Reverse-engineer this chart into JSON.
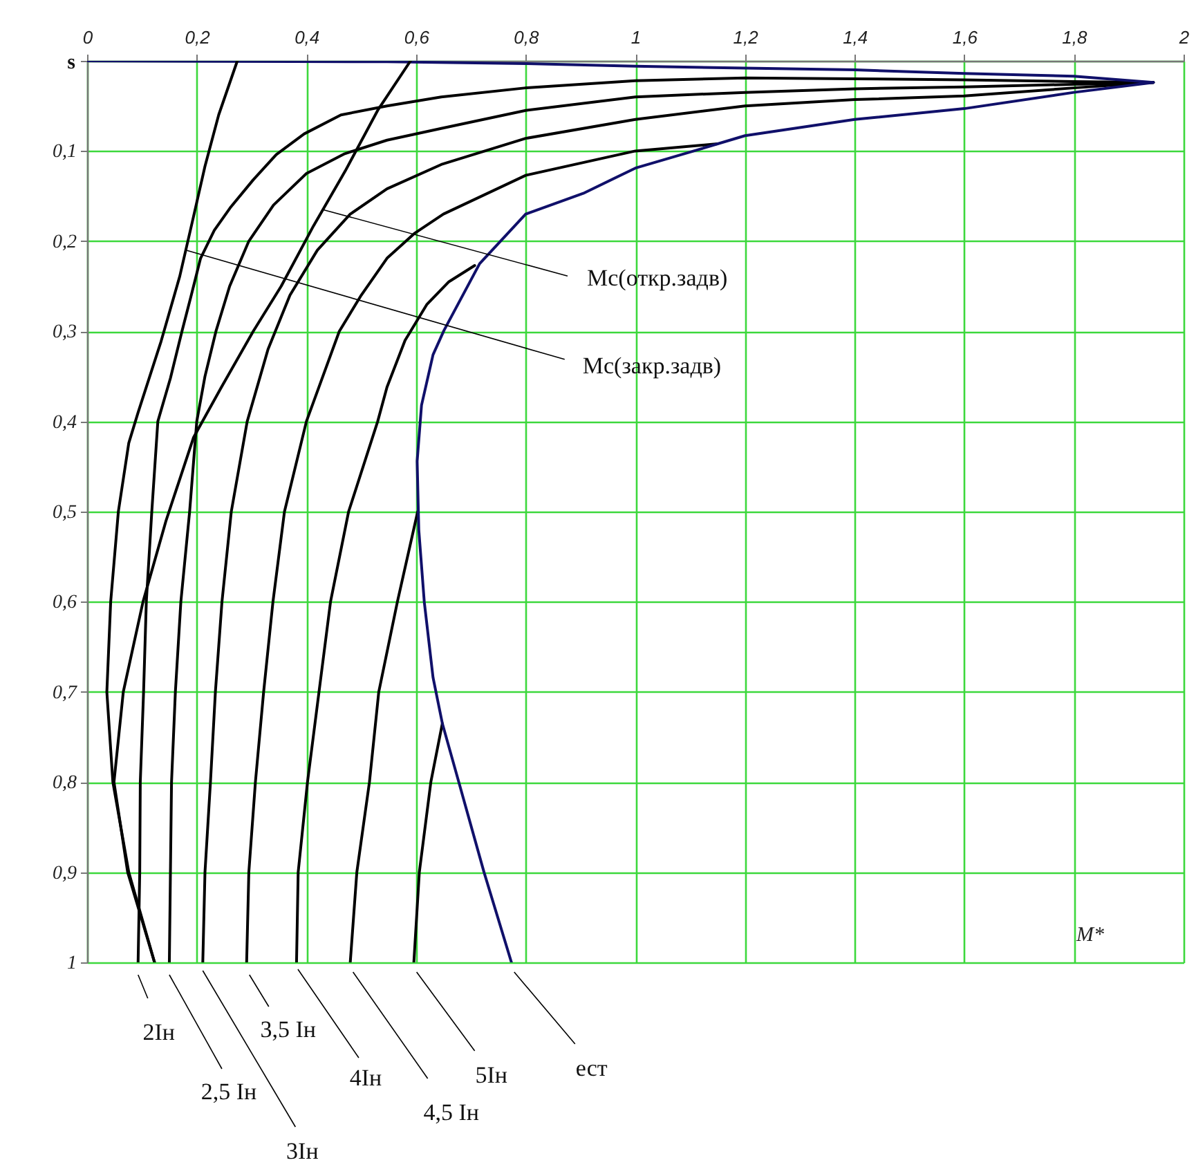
{
  "chart_data": {
    "type": "line",
    "xlabel": "M*",
    "ylabel": "s",
    "xlim": [
      0,
      2
    ],
    "ylim": [
      1,
      0
    ],
    "xticks": [
      0,
      {
        "value": 0.2,
        "label": "0,2"
      },
      {
        "value": 0.4,
        "label": "0,4"
      },
      {
        "value": 0.6,
        "label": "0,6"
      },
      {
        "value": 0.8,
        "label": "0,8"
      },
      1,
      {
        "value": 1.2,
        "label": "1,2"
      },
      {
        "value": 1.4,
        "label": "1,4"
      },
      {
        "value": 1.6,
        "label": "1,6"
      },
      {
        "value": 1.8,
        "label": "1,8"
      },
      2
    ],
    "yticks": [
      {
        "value": 0,
        "label": null
      },
      {
        "value": 0.1,
        "label": "0,1"
      },
      {
        "value": 0.2,
        "label": "0,2"
      },
      {
        "value": 0.3,
        "label": "0,3"
      },
      {
        "value": 0.4,
        "label": "0,4"
      },
      {
        "value": 0.5,
        "label": "0,5"
      },
      {
        "value": 0.6,
        "label": "0,6"
      },
      {
        "value": 0.7,
        "label": "0,7"
      },
      {
        "value": 0.8,
        "label": "0,8"
      },
      {
        "value": 0.9,
        "label": "0,9"
      },
      1
    ],
    "grid": true,
    "line_style": "solid",
    "series": [
      {
        "color": "#000000",
        "x": [
          0.093,
          0.096,
          0.097,
          0.103,
          0.108,
          0.118,
          0.129,
          0.152,
          0.173,
          0.19,
          0.207,
          0.232,
          0.261,
          0.303,
          0.345,
          0.396,
          0.463,
          0.547,
          0.646,
          0.8,
          1.0,
          1.2,
          1.4,
          1.6,
          1.8,
          1.945
        ],
        "values": [
          1,
          0.9,
          0.8,
          0.7,
          0.6,
          0.5,
          0.4,
          0.352,
          0.3,
          0.26,
          0.219,
          0.188,
          0.163,
          0.132,
          0.104,
          0.081,
          0.06,
          0.05,
          0.04,
          0.03,
          0.022,
          0.019,
          0.02,
          0.021,
          0.023,
          0.024
        ]
      },
      {
        "color": "#000000",
        "x": [
          0.15,
          0.152,
          0.154,
          0.161,
          0.171,
          0.187,
          0.2,
          0.215,
          0.235,
          0.26,
          0.295,
          0.34,
          0.4,
          0.47,
          0.547,
          0.646,
          0.8,
          1.0,
          1.2,
          1.4,
          1.6,
          1.8,
          1.945
        ],
        "values": [
          1,
          0.9,
          0.8,
          0.7,
          0.6,
          0.5,
          0.4,
          0.35,
          0.3,
          0.25,
          0.2,
          0.16,
          0.125,
          0.103,
          0.088,
          0.075,
          0.055,
          0.04,
          0.035,
          0.031,
          0.029,
          0.026,
          0.024
        ]
      },
      {
        "color": "#000000",
        "x": [
          0.211,
          0.215,
          0.225,
          0.234,
          0.246,
          0.263,
          0.292,
          0.33,
          0.37,
          0.42,
          0.48,
          0.547,
          0.646,
          0.8,
          1.0,
          1.2,
          1.4,
          1.6,
          1.8,
          1.945
        ],
        "values": [
          1,
          0.9,
          0.8,
          0.7,
          0.6,
          0.5,
          0.4,
          0.32,
          0.26,
          0.21,
          0.17,
          0.142,
          0.115,
          0.086,
          0.065,
          0.05,
          0.043,
          0.039,
          0.03,
          0.024
        ]
      },
      {
        "color": "#000000",
        "x": [
          0.291,
          0.295,
          0.307,
          0.322,
          0.339,
          0.36,
          0.4,
          0.46,
          0.5,
          0.547,
          0.598,
          0.65,
          0.8,
          1.0,
          1.15
        ],
        "values": [
          1,
          0.9,
          0.8,
          0.7,
          0.6,
          0.5,
          0.4,
          0.3,
          0.26,
          0.219,
          0.191,
          0.17,
          0.127,
          0.1,
          0.092
        ]
      },
      {
        "color": "#000000",
        "x": [
          0.382,
          0.385,
          0.402,
          0.423,
          0.444,
          0.477,
          0.53,
          0.547,
          0.58,
          0.62,
          0.66,
          0.707
        ],
        "values": [
          1,
          0.9,
          0.8,
          0.7,
          0.6,
          0.5,
          0.4,
          0.362,
          0.31,
          0.27,
          0.245,
          0.227
        ]
      },
      {
        "color": "#000000",
        "x": [
          0.48,
          0.492,
          0.515,
          0.532,
          0.566,
          0.603
        ],
        "values": [
          1,
          0.9,
          0.8,
          0.7,
          0.6,
          0.5
        ]
      },
      {
        "color": "#000000",
        "x": [
          0.596,
          0.606,
          0.627,
          0.648
        ],
        "values": [
          1,
          0.9,
          0.8,
          0.735
        ]
      },
      {
        "color": "#10106a",
        "x": [
          0.774,
          0.724,
          0.678,
          0.648,
          0.631,
          0.615,
          0.605,
          0.602,
          0.61,
          0.631,
          0.651,
          0.716,
          0.8,
          0.905,
          1.0,
          1.112,
          1.2,
          1.4,
          1.6,
          1.8,
          1.945,
          1.8,
          1.6,
          1.4,
          1.2,
          1.0,
          0.8,
          0.547,
          0
        ],
        "values": [
          1,
          0.9,
          0.8,
          0.735,
          0.684,
          0.6,
          0.52,
          0.444,
          0.382,
          0.326,
          0.299,
          0.225,
          0.17,
          0.147,
          0.119,
          0.099,
          0.083,
          0.065,
          0.053,
          0.035,
          0.024,
          0.017,
          0.014,
          0.01,
          0.008,
          0.006,
          0.003,
          0.001,
          0
        ]
      },
      {
        "color": "#000000",
        "x": [
          0.274,
          0.24,
          0.215,
          0.194,
          0.169,
          0.135,
          0.093,
          0.076,
          0.057,
          0.043,
          0.036,
          0.047,
          0.076,
          0.123
        ],
        "values": [
          0,
          0.06,
          0.117,
          0.173,
          0.239,
          0.311,
          0.39,
          0.424,
          0.5,
          0.6,
          0.7,
          0.8,
          0.9,
          1
        ]
      },
      {
        "color": "#000000",
        "x": [
          0.59,
          0.53,
          0.471,
          0.413,
          0.354,
          0.303,
          0.245,
          0.194,
          0.144,
          0.102,
          0.066,
          0.049,
          0.074,
          0.123
        ],
        "values": [
          0,
          0.055,
          0.122,
          0.183,
          0.25,
          0.3,
          0.362,
          0.418,
          0.51,
          0.6,
          0.7,
          0.8,
          0.9,
          1
        ]
      }
    ],
    "annotations": [
      {
        "text": "2Iн",
        "x": 0.093,
        "y": 1
      },
      {
        "text": "2,5 Iн",
        "x": 0.15,
        "y": 1
      },
      {
        "text": "3Iн",
        "x": 0.211,
        "y": 1
      },
      {
        "text": "3,5 Iн",
        "x": 0.291,
        "y": 1
      },
      {
        "text": "4Iн",
        "x": 0.382,
        "y": 1
      },
      {
        "text": "4,5 Iн",
        "x": 0.48,
        "y": 1
      },
      {
        "text": "5Iн",
        "x": 0.596,
        "y": 1
      },
      {
        "text": "ест",
        "x": 0.774,
        "y": 1
      },
      {
        "text": "Mc(откр.задв)",
        "x": 0.43,
        "y": 0.165
      },
      {
        "text": "Mc(закр.задв)",
        "x": 0.18,
        "y": 0.21
      }
    ]
  }
}
